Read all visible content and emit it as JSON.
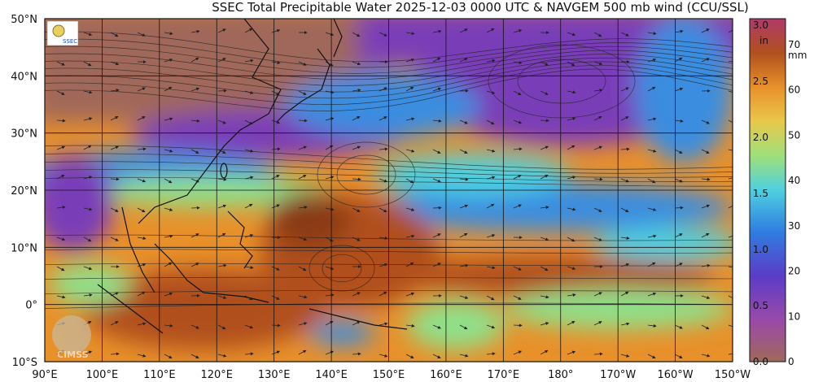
{
  "title": "SSEC Total Precipitable Water  2025-12-03 0000 UTC & NAVGEM 500 mb wind (CCU/SSL)",
  "logos": {
    "ssec": "SSEC",
    "cimss": "CIMSS"
  },
  "map": {
    "lat_labels": [
      "50°N",
      "40°N",
      "30°N",
      "20°N",
      "10°N",
      "0°",
      "10°S"
    ],
    "lon_labels": [
      "90°E",
      "100°E",
      "110°E",
      "120°E",
      "130°E",
      "140°E",
      "150°E",
      "160°E",
      "170°E",
      "180°",
      "170°W",
      "160°W",
      "150°W"
    ],
    "colors": {
      "dry": "#a0685a",
      "purple": "#7a3cb8",
      "blue": "#3a8de0",
      "cyan": "#4fd0e0",
      "green": "#8fe08a",
      "orange": "#e8902a",
      "brown": "#b0501e",
      "darkbrown": "#8a3a18",
      "land": "#111111"
    }
  },
  "colorbar": {
    "in_unit": "in",
    "mm_unit": "mm",
    "in_ticks": [
      "0.0",
      "0.5",
      "1.0",
      "1.5",
      "2.0",
      "2.5",
      "3.0"
    ],
    "mm_ticks": [
      "0",
      "10",
      "20",
      "30",
      "40",
      "50",
      "60",
      "70"
    ]
  }
}
